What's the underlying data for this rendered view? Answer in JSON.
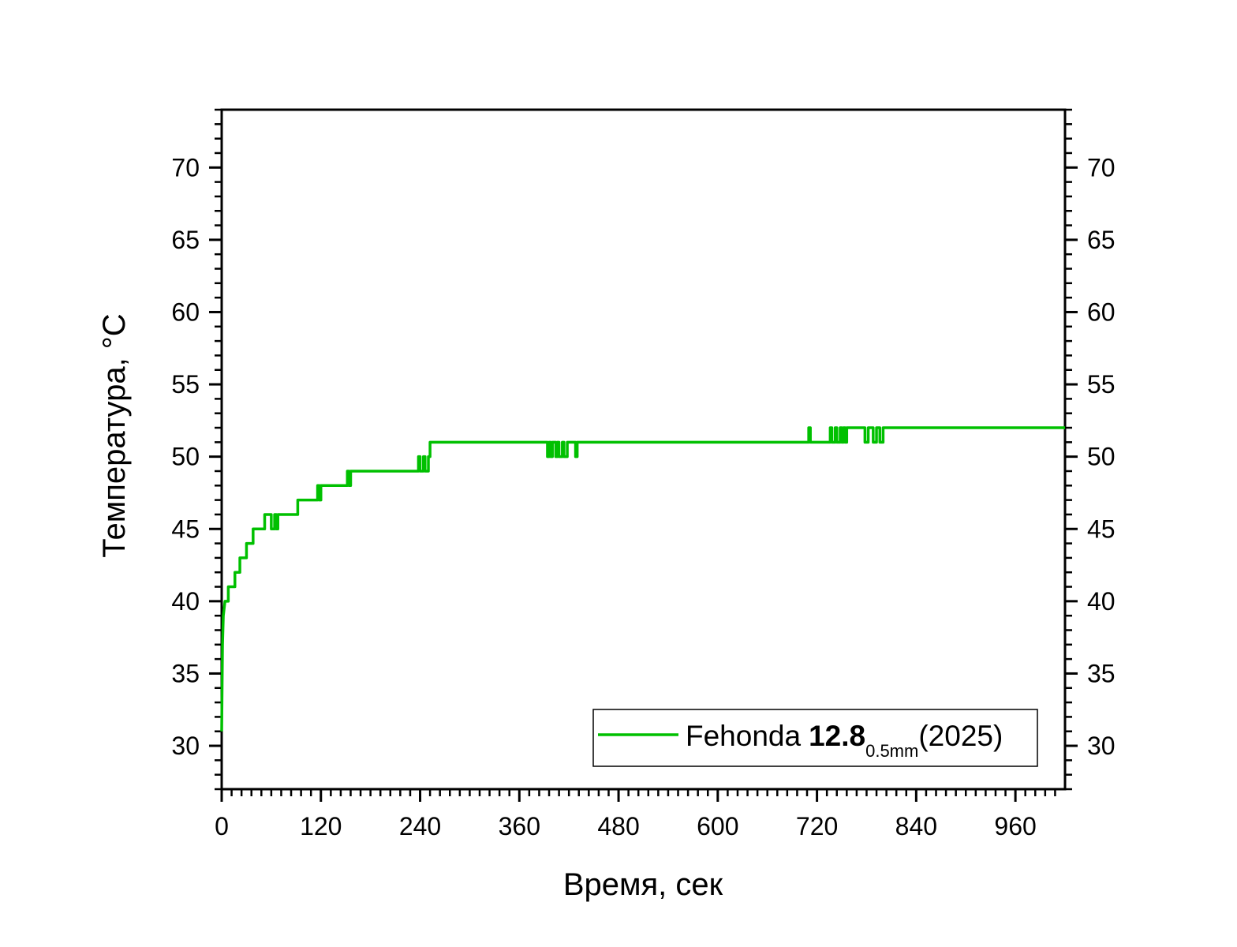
{
  "chart_data": {
    "type": "line",
    "title": "",
    "xlabel": "Время, сек",
    "ylabel": "Температура, °C",
    "xlim": [
      0,
      1020
    ],
    "ylim": [
      27,
      74
    ],
    "x_ticks": [
      0,
      120,
      240,
      360,
      480,
      600,
      720,
      840,
      960
    ],
    "y_ticks": [
      30,
      35,
      40,
      45,
      50,
      55,
      60,
      65,
      70
    ],
    "x_tick_labels": [
      "0",
      "120",
      "240",
      "360",
      "480",
      "600",
      "720",
      "840",
      "960"
    ],
    "y_tick_labels": [
      "30",
      "35",
      "40",
      "45",
      "50",
      "55",
      "60",
      "65",
      "70"
    ],
    "grid": false,
    "mirror_y_axis": true,
    "legend_position": "bottom-right",
    "legend": {
      "name": "Fehonda",
      "value_bold": "12.8",
      "subscript": "0.5mm",
      "suffix": "(2025)"
    },
    "series": [
      {
        "name": "Fehonda 12.8 0.5mm (2025)",
        "color": "#00c000",
        "x": [
          0,
          0.5,
          1,
          1.5,
          2,
          3,
          4,
          6,
          8,
          8,
          16,
          16,
          22,
          22,
          30,
          30,
          38,
          38,
          52,
          52,
          60,
          60,
          64,
          64,
          66,
          66,
          68,
          68,
          92,
          92,
          116,
          116,
          118,
          118,
          120,
          120,
          152,
          152,
          154,
          154,
          156,
          156,
          238,
          238,
          240,
          240,
          244,
          244,
          246,
          246,
          250,
          250,
          252,
          252,
          394,
          394,
          396,
          396,
          398,
          398,
          400,
          400,
          404,
          404,
          406,
          406,
          408,
          408,
          412,
          412,
          414,
          414,
          418,
          418,
          428,
          428,
          430,
          430,
          710,
          710,
          712,
          712,
          736,
          736,
          738,
          738,
          742,
          742,
          744,
          744,
          748,
          748,
          750,
          750,
          752,
          752,
          754,
          754,
          756,
          756,
          758,
          758,
          778,
          778,
          782,
          782,
          788,
          788,
          792,
          792,
          796,
          796,
          800,
          800,
          1020
        ],
        "y": [
          31,
          34,
          37,
          38,
          39,
          39.5,
          40,
          40,
          40,
          41,
          41,
          42,
          42,
          43,
          43,
          44,
          44,
          45,
          45,
          46,
          46,
          45,
          45,
          46,
          46,
          45,
          45,
          46,
          46,
          47,
          47,
          48,
          48,
          47,
          47,
          48,
          48,
          49,
          49,
          48,
          48,
          49,
          49,
          50,
          50,
          49,
          49,
          50,
          50,
          49,
          49,
          50,
          50,
          51,
          51,
          50,
          50,
          51,
          51,
          50,
          50,
          51,
          51,
          50,
          50,
          51,
          51,
          50,
          50,
          51,
          51,
          50,
          50,
          51,
          51,
          50,
          50,
          51,
          51,
          52,
          52,
          51,
          51,
          52,
          52,
          51,
          51,
          52,
          52,
          51,
          51,
          52,
          52,
          51,
          51,
          52,
          52,
          51,
          51,
          52,
          52,
          52,
          52,
          51,
          51,
          52,
          52,
          51,
          51,
          52,
          52,
          51,
          51,
          52,
          52
        ]
      }
    ]
  }
}
